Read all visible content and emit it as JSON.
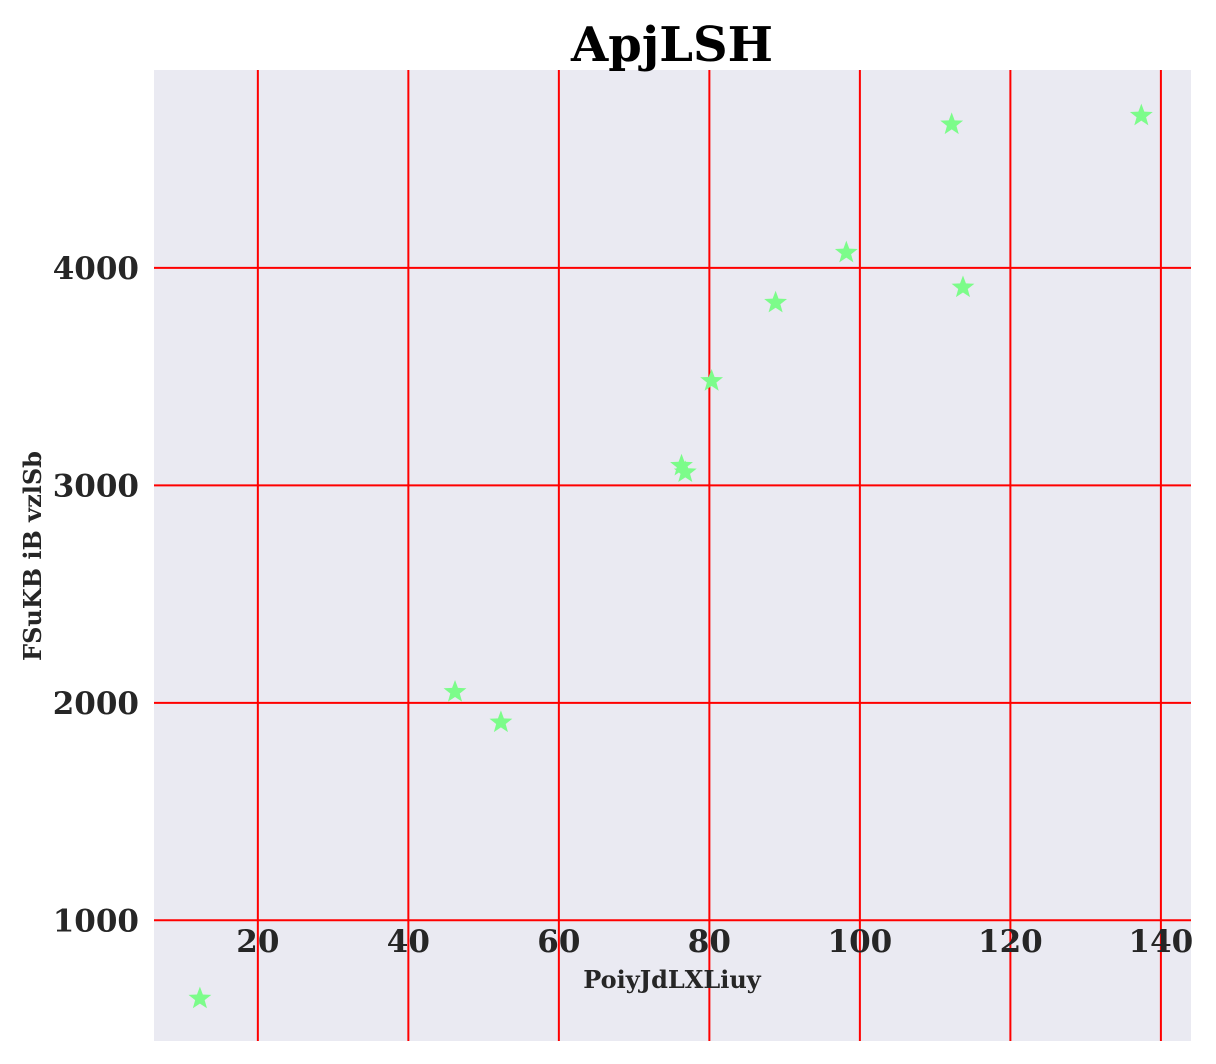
{
  "chart_data": {
    "type": "scatter",
    "title": "ApjLSH",
    "xlabel": "PoiyJdLXLiuy",
    "ylabel": "FSuKB iB vzlSb",
    "xlim": [
      6.2,
      144
    ],
    "ylim": [
      445,
      4910
    ],
    "x_ticks": [
      20,
      40,
      60,
      80,
      100,
      120,
      140
    ],
    "y_ticks": [
      1000,
      2000,
      3000,
      4000
    ],
    "x_tick_labels": [
      "20",
      "40",
      "60",
      "80",
      "100",
      "120",
      "140"
    ],
    "y_tick_labels": [
      "1000",
      "2000",
      "3000",
      "4000"
    ],
    "grid": true,
    "marker": "star",
    "colors": {
      "plot_background": "#eaeaf2",
      "grid": "#ff0000",
      "marker": "#7cfc8a",
      "text": "#262626"
    },
    "series": [
      {
        "x": [
          12.3,
          46.2,
          52.3,
          76.3,
          76.8,
          80.3,
          88.8,
          98.2,
          112.2,
          113.7,
          137.4
        ],
        "y": [
          640,
          2050,
          1910,
          3090,
          3060,
          3480,
          3840,
          4070,
          4660,
          3910,
          4700
        ]
      }
    ]
  }
}
